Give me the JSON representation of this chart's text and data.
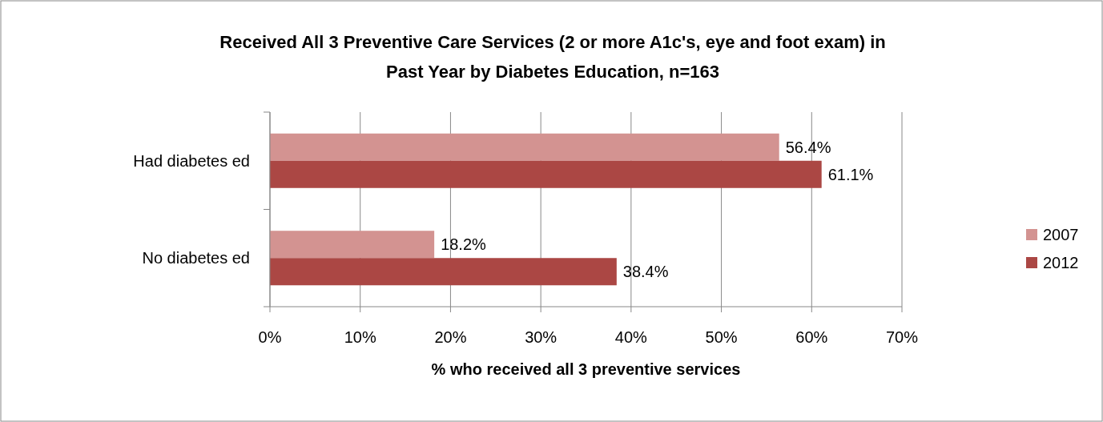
{
  "chart_data": {
    "type": "bar",
    "orientation": "horizontal",
    "title": "Received All 3 Preventive Care Services (2 or more A1c's, eye and foot exam) in Past Year by Diabetes Education, n=163",
    "xlabel": "% who received all 3 preventive services",
    "categories": [
      "Had diabetes ed",
      "No diabetes ed"
    ],
    "series": [
      {
        "name": "2007",
        "color": "#d39391",
        "values": [
          56.4,
          18.2
        ],
        "value_labels": [
          "56.4%",
          "18.2%"
        ]
      },
      {
        "name": "2012",
        "color": "#ab4744",
        "values": [
          61.1,
          38.4
        ],
        "value_labels": [
          "61.1%",
          "38.4%"
        ]
      }
    ],
    "xlim": [
      0,
      70
    ],
    "xticks": [
      {
        "value": 0,
        "label": "0%"
      },
      {
        "value": 10,
        "label": "10%"
      },
      {
        "value": 20,
        "label": "20%"
      },
      {
        "value": 30,
        "label": "30%"
      },
      {
        "value": 40,
        "label": "40%"
      },
      {
        "value": 50,
        "label": "50%"
      },
      {
        "value": 60,
        "label": "60%"
      },
      {
        "value": 70,
        "label": "70%"
      }
    ],
    "grid": "x",
    "legend": "right"
  }
}
